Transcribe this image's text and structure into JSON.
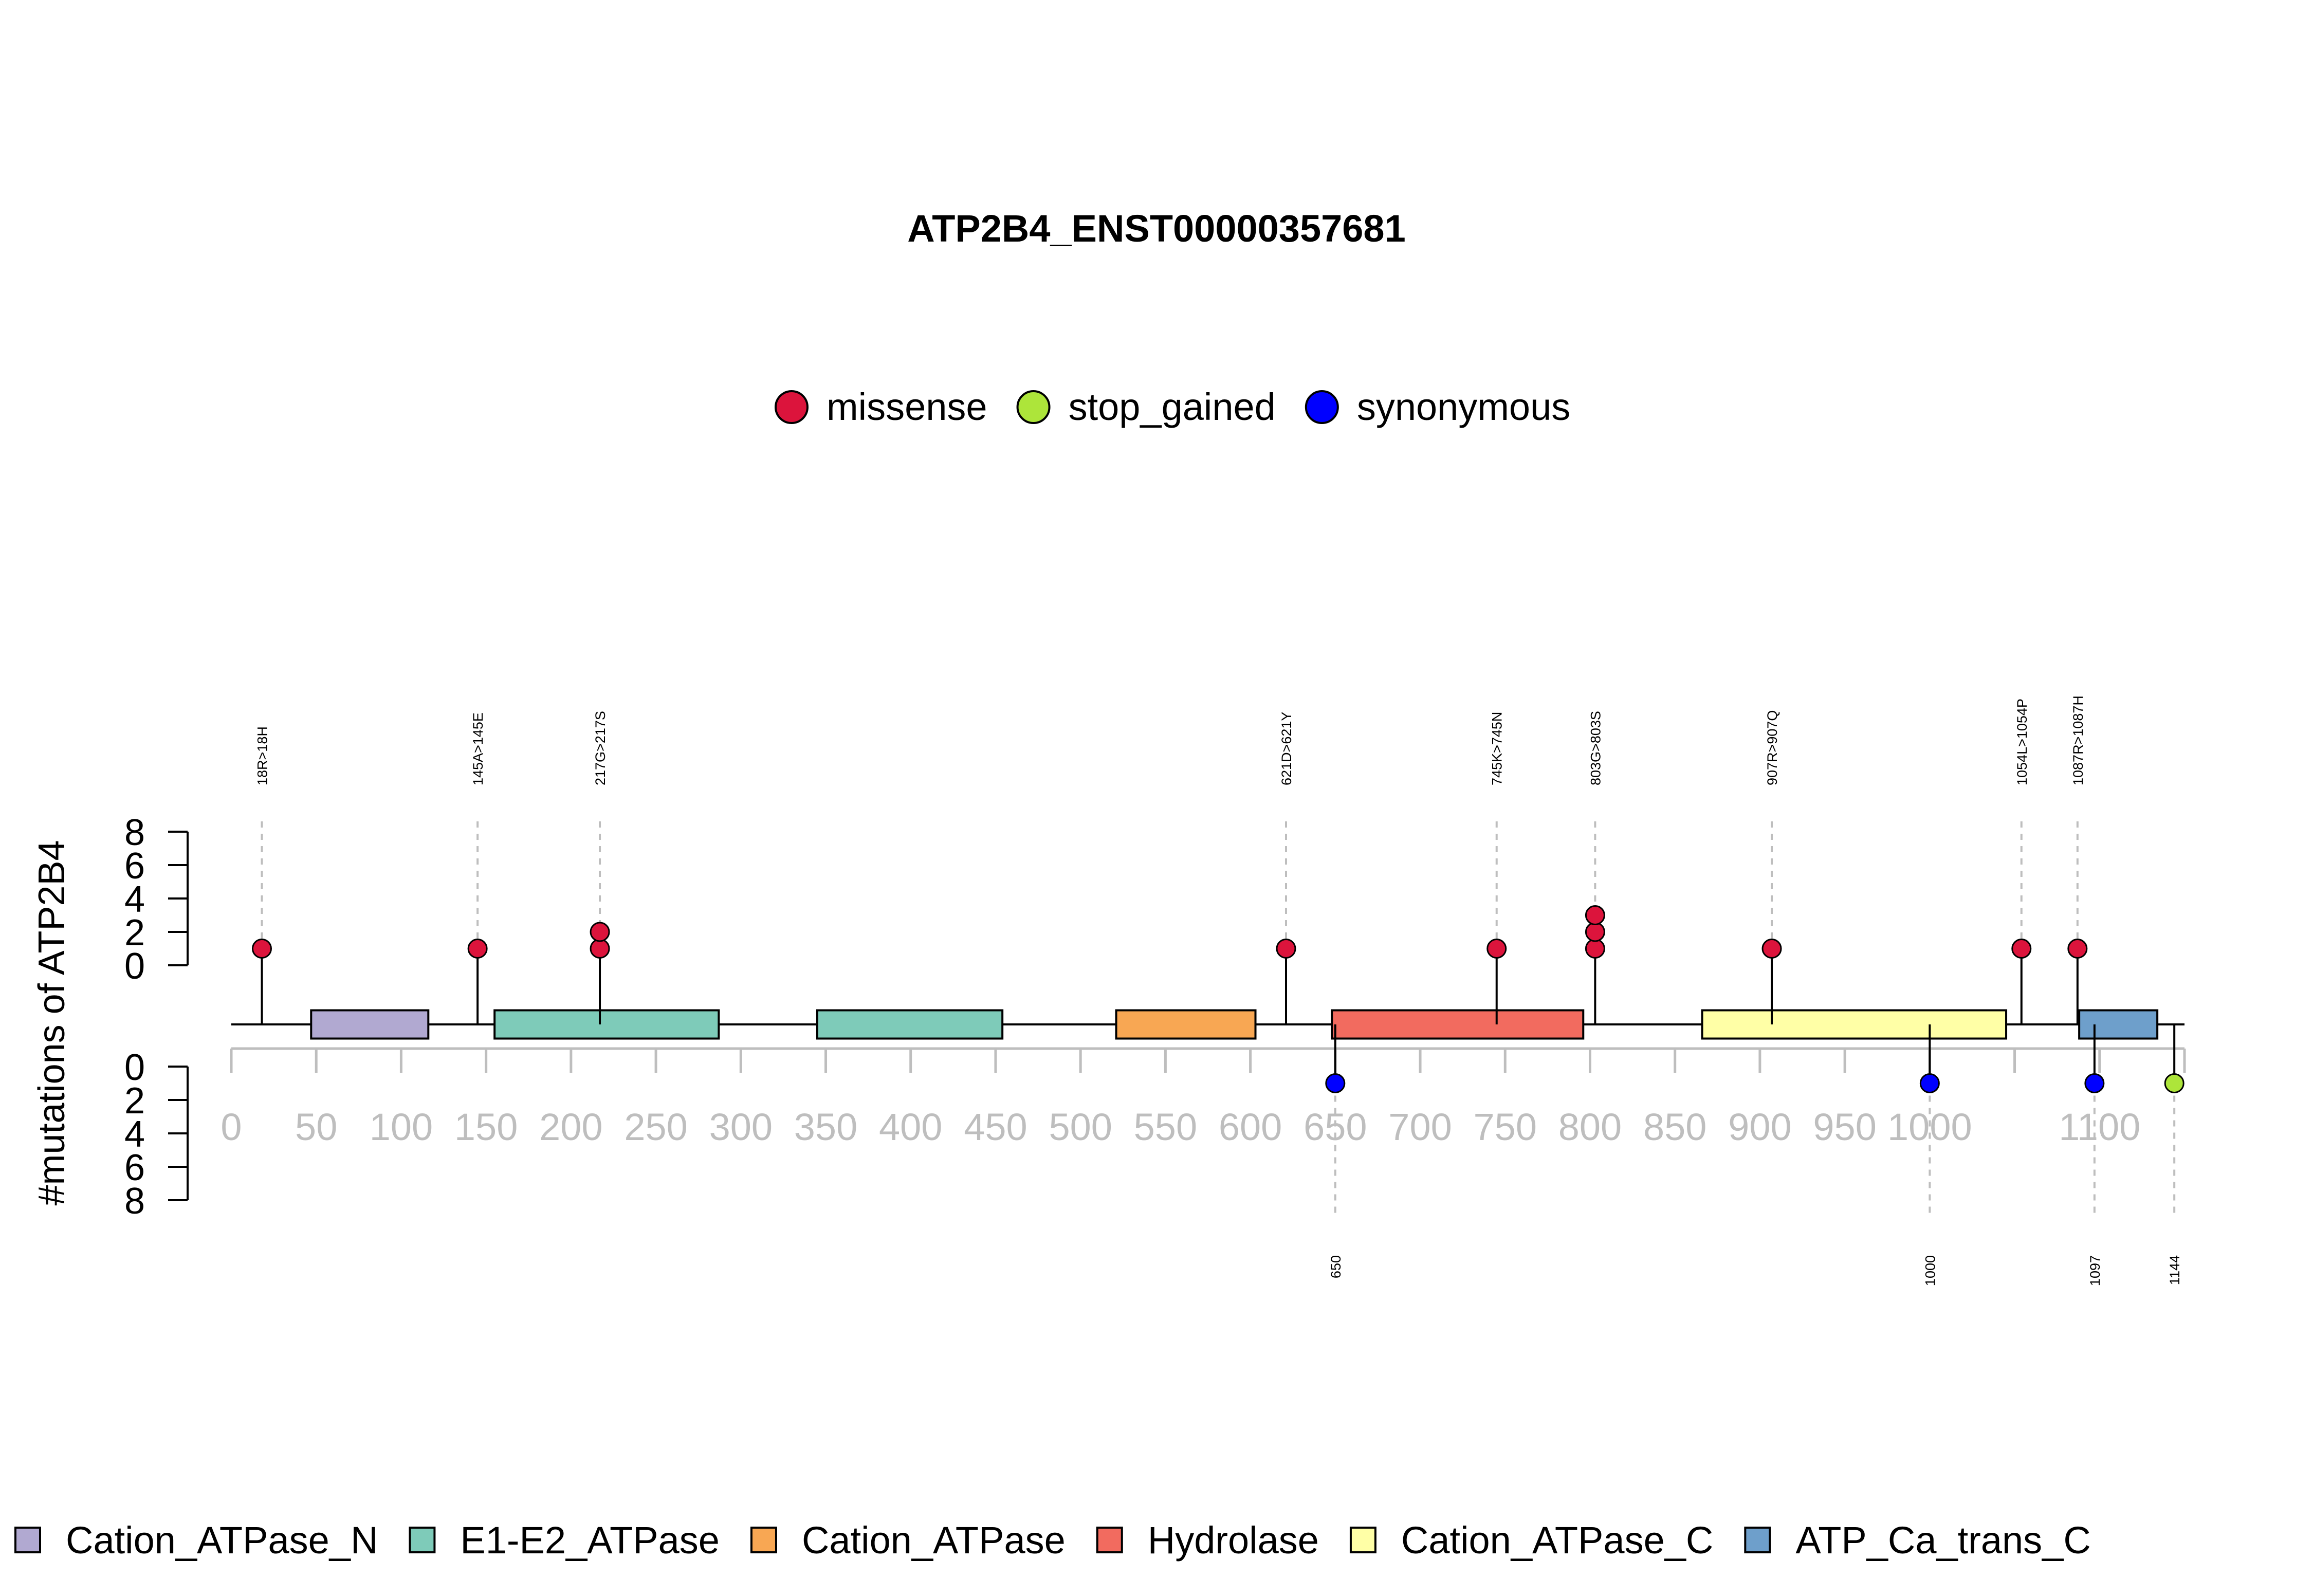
{
  "chart_data": {
    "type": "lollipop",
    "title": "ATP2B4_ENST00000357681",
    "ylabel": "#mutations of ATP2B4",
    "xlim": [
      0,
      1150
    ],
    "x_ticks": [
      0,
      50,
      100,
      150,
      200,
      250,
      300,
      350,
      400,
      450,
      500,
      550,
      600,
      650,
      700,
      750,
      800,
      850,
      900,
      950,
      1000,
      1050,
      1100,
      1150
    ],
    "x_tick_labels": [
      "0",
      "50",
      "100",
      "150",
      "200",
      "250",
      "300",
      "350",
      "400",
      "450",
      "500",
      "550",
      "600",
      "650",
      "700",
      "750",
      "800",
      "850",
      "900",
      "950",
      "1000",
      "",
      "1100",
      ""
    ],
    "y_upper": {
      "lim": [
        0,
        8
      ],
      "ticks": [
        "0",
        "2",
        "4",
        "6",
        "8"
      ]
    },
    "y_lower": {
      "lim": [
        0,
        8
      ],
      "ticks": [
        "0",
        "2",
        "4",
        "6",
        "8"
      ]
    },
    "mutation_legend": [
      {
        "label": "missense",
        "color": "#DC143C"
      },
      {
        "label": "stop_gained",
        "color": "#ADE53A"
      },
      {
        "label": "synonymous",
        "color": "#0000FF"
      }
    ],
    "domain_legend": [
      {
        "label": "Cation_ATPase_N",
        "color": "#B1A9D1"
      },
      {
        "label": "E1-E2_ATPase",
        "color": "#7ECBB9"
      },
      {
        "label": "Cation_ATPase",
        "color": "#F8A753"
      },
      {
        "label": "Hydrolase",
        "color": "#F26B5F"
      },
      {
        "label": "Cation_ATPase_C",
        "color": "#FFFFA6"
      },
      {
        "label": "ATP_Ca_trans_C",
        "color": "#6E9FCB"
      }
    ],
    "domains": [
      {
        "name": "Cation_ATPase_N",
        "start": 47,
        "end": 116
      },
      {
        "name": "E1-E2_ATPase",
        "start": 155,
        "end": 287
      },
      {
        "name": "E1-E2_ATPase",
        "start": 345,
        "end": 454
      },
      {
        "name": "Cation_ATPase",
        "start": 521,
        "end": 603
      },
      {
        "name": "Hydrolase",
        "start": 648,
        "end": 796
      },
      {
        "name": "Cation_ATPase_C",
        "start": 866,
        "end": 1045
      },
      {
        "name": "ATP_Ca_trans_C",
        "start": 1088,
        "end": 1134
      }
    ],
    "upper_mutations": [
      {
        "pos": 18,
        "label": "18R>18H",
        "count": 1,
        "type": "missense"
      },
      {
        "pos": 145,
        "label": "145A>145E",
        "count": 1,
        "type": "missense"
      },
      {
        "pos": 217,
        "label": "217G>217S",
        "count": 2,
        "type": "missense"
      },
      {
        "pos": 621,
        "label": "621D>621Y",
        "count": 1,
        "type": "missense"
      },
      {
        "pos": 745,
        "label": "745K>745N",
        "count": 1,
        "type": "missense"
      },
      {
        "pos": 803,
        "label": "803G>803S",
        "count": 3,
        "type": "missense"
      },
      {
        "pos": 907,
        "label": "907R>907Q",
        "count": 1,
        "type": "missense"
      },
      {
        "pos": 1054,
        "label": "1054L>1054P",
        "count": 1,
        "type": "missense"
      },
      {
        "pos": 1087,
        "label": "1087R>1087H",
        "count": 1,
        "type": "missense"
      }
    ],
    "lower_mutations": [
      {
        "pos": 650,
        "label": "650",
        "count": 1,
        "type": "synonymous"
      },
      {
        "pos": 1000,
        "label": "1000",
        "count": 1,
        "type": "synonymous"
      },
      {
        "pos": 1097,
        "label": "1097",
        "count": 1,
        "type": "synonymous"
      },
      {
        "pos": 1144,
        "label": "1144",
        "count": 1,
        "type": "stop_gained"
      }
    ]
  }
}
